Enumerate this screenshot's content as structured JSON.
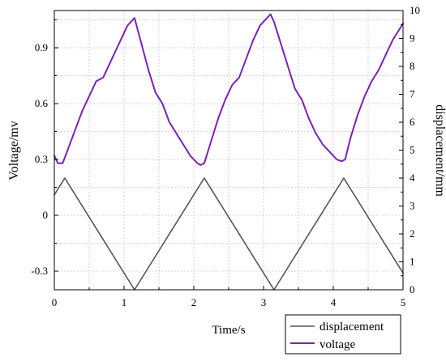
{
  "chart_data": {
    "type": "line",
    "xlabel": "Time/s",
    "ylabel_left": "Voltage/mv",
    "ylabel_right": "displacement/mm",
    "xlim": [
      0,
      5
    ],
    "ylim_left": [
      -0.4,
      1.1
    ],
    "ylim_right": [
      0,
      10
    ],
    "x_ticks": [
      "0",
      "1",
      "2",
      "3",
      "4",
      "5"
    ],
    "y_left_ticks": [
      "-0.3",
      "0",
      "0.3",
      "0.6",
      "0.9"
    ],
    "y_right_ticks": [
      "0",
      "1",
      "2",
      "3",
      "4",
      "5",
      "6",
      "7",
      "8",
      "9",
      "10"
    ],
    "grid": true,
    "legend_position": "bottom-right",
    "series": [
      {
        "name": "displacement",
        "axis": "right",
        "color": "#555555",
        "x": [
          0,
          0.15,
          1.15,
          2.15,
          3.15,
          4.15,
          5.0
        ],
        "y": [
          3.4,
          4.0,
          0.0,
          4.0,
          0.0,
          4.0,
          0.6
        ]
      },
      {
        "name": "voltage",
        "axis": "left",
        "color": "#7B22B5",
        "x": [
          0,
          0.05,
          0.12,
          0.2,
          0.3,
          0.4,
          0.5,
          0.6,
          0.7,
          0.8,
          0.9,
          1.0,
          1.05,
          1.1,
          1.15,
          1.25,
          1.35,
          1.45,
          1.55,
          1.65,
          1.75,
          1.85,
          1.95,
          2.05,
          2.1,
          2.15,
          2.25,
          2.35,
          2.45,
          2.55,
          2.65,
          2.75,
          2.85,
          2.95,
          3.05,
          3.1,
          3.15,
          3.25,
          3.35,
          3.45,
          3.55,
          3.65,
          3.75,
          3.85,
          3.95,
          4.05,
          4.12,
          4.17,
          4.25,
          4.35,
          4.45,
          4.55,
          4.65,
          4.75,
          4.85,
          4.95,
          5.0
        ],
        "y": [
          0.32,
          0.28,
          0.28,
          0.36,
          0.46,
          0.56,
          0.64,
          0.72,
          0.74,
          0.82,
          0.9,
          0.98,
          1.02,
          1.04,
          1.06,
          0.92,
          0.78,
          0.66,
          0.6,
          0.5,
          0.44,
          0.38,
          0.32,
          0.28,
          0.27,
          0.28,
          0.4,
          0.52,
          0.62,
          0.7,
          0.74,
          0.84,
          0.94,
          1.02,
          1.06,
          1.08,
          1.04,
          0.92,
          0.8,
          0.68,
          0.62,
          0.52,
          0.44,
          0.38,
          0.34,
          0.3,
          0.29,
          0.3,
          0.42,
          0.54,
          0.64,
          0.72,
          0.78,
          0.86,
          0.94,
          1.0,
          1.03
        ]
      }
    ]
  }
}
